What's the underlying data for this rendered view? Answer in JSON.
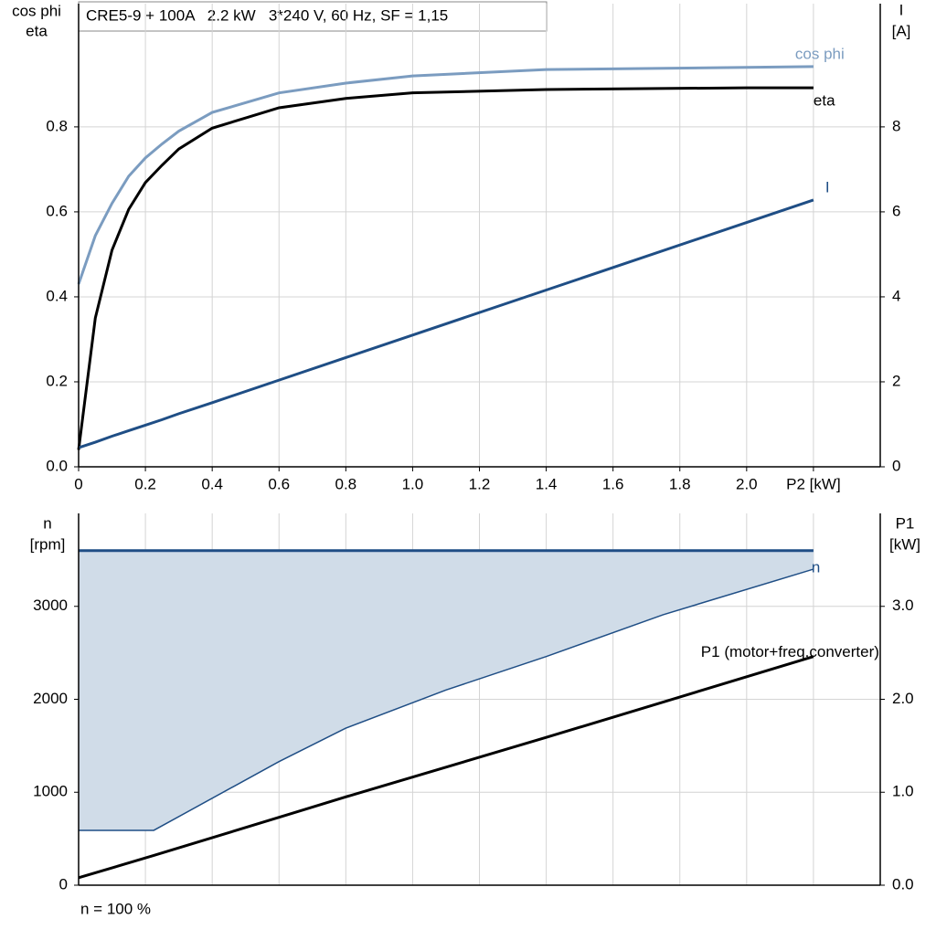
{
  "chart_data": [
    {
      "type": "line",
      "title": "CRE5-9 + 100A   2.2 kW   3*240 V, 60 Hz, SF = 1,15",
      "y_label": [
        "cos phi",
        "eta"
      ],
      "y2_label": [
        "I",
        "[A]"
      ],
      "x": [
        0,
        0.05,
        0.1,
        0.15,
        0.2,
        0.25,
        0.3,
        0.4,
        0.6,
        0.8,
        1.0,
        1.4,
        2.0,
        2.2
      ],
      "xlim": [
        0,
        2.4
      ],
      "xticks": [
        0,
        0.2,
        0.4,
        0.6,
        0.8,
        {
          "value": 1.0,
          "label": "1.0"
        },
        1.2,
        1.4,
        1.6,
        1.8,
        {
          "value": 2.0,
          "label": "2.0"
        },
        {
          "value": 2.2,
          "label": "P2 [kW]"
        }
      ],
      "ylim": [
        0,
        1.09
      ],
      "yticks": [
        {
          "value": 0,
          "label": "0.0"
        },
        0.2,
        0.4,
        0.6,
        0.8
      ],
      "y2lim": [
        0,
        10.9
      ],
      "y2ticks": [
        0,
        2,
        4,
        6,
        8
      ],
      "grid": true,
      "series": [
        {
          "name": "cos phi",
          "color": "#7b9cc0",
          "values": [
            0.43,
            0.544,
            0.62,
            0.684,
            0.727,
            0.76,
            0.79,
            0.834,
            0.88,
            0.903,
            0.92,
            0.935,
            0.94,
            0.942
          ]
        },
        {
          "name": "eta",
          "color": "#000000",
          "values": [
            0.04,
            0.35,
            0.51,
            0.606,
            0.669,
            0.71,
            0.748,
            0.797,
            0.845,
            0.867,
            0.88,
            0.888,
            0.892,
            0.892
          ]
        },
        {
          "name": "I",
          "color": "#1f4e85",
          "axis": "y2",
          "values": [
            0.45,
            0.58,
            0.72,
            0.85,
            0.98,
            1.11,
            1.25,
            1.51,
            2.04,
            2.57,
            3.1,
            4.16,
            5.75,
            6.28
          ]
        }
      ]
    },
    {
      "type": "line",
      "y_label": [
        "n",
        "[rpm]"
      ],
      "y2_label": [
        "P1",
        "[kW]"
      ],
      "note": "n = 100 %",
      "x": [
        0,
        0.225,
        0.6,
        0.8,
        1.1,
        1.4,
        1.75,
        2.2
      ],
      "xlim": [
        0,
        2.4
      ],
      "xticks": [
        0.2,
        0.4,
        0.6,
        0.8,
        1.0,
        1.2,
        1.4,
        1.6,
        1.8,
        2.0,
        2.2
      ],
      "x_tick_labels": false,
      "ylim": [
        0,
        4000
      ],
      "yticks": [
        0,
        1000,
        2000,
        3000
      ],
      "y2lim": [
        0,
        4.0
      ],
      "y2ticks": [
        {
          "value": 0,
          "label": "0.0"
        },
        {
          "value": 1,
          "label": "1.0"
        },
        {
          "value": 2,
          "label": "2.0"
        },
        {
          "value": 3,
          "label": "3.0"
        }
      ],
      "grid": true,
      "series": [
        {
          "name": "n",
          "color": "#1f4e85",
          "fill": "#d0dce8",
          "values": [
            3600,
            3600,
            3600,
            3600,
            3600,
            3600,
            3600,
            3600
          ],
          "lower": [
            590,
            590,
            1330,
            1690,
            2100,
            2460,
            2910,
            3400
          ]
        },
        {
          "name": "P1 (motor+freq.converter)",
          "color": "#000000",
          "axis": "y2",
          "values": [
            0.08,
            0.32,
            0.73,
            0.95,
            1.27,
            1.59,
            1.97,
            2.46
          ]
        }
      ]
    }
  ]
}
